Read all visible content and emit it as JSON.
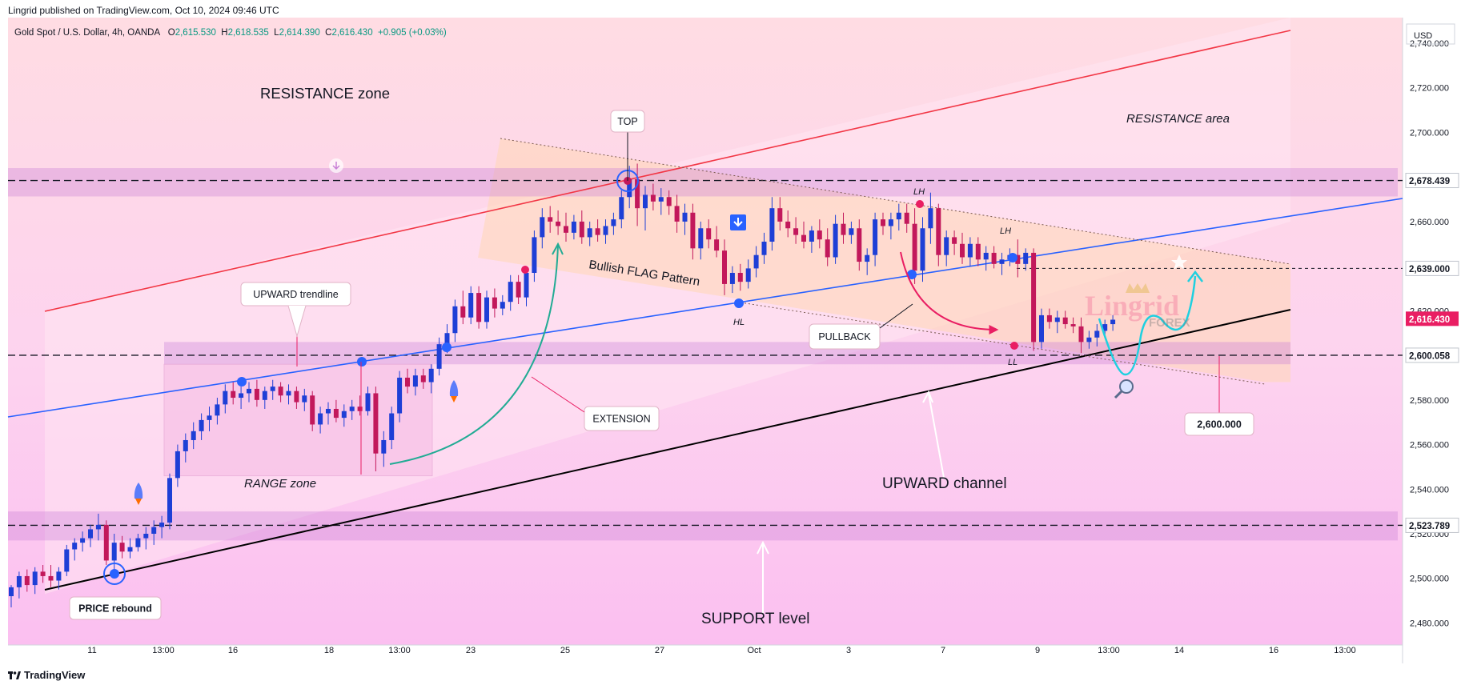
{
  "published": "Lingrid published on TradingView.com, Oct 10, 2024 09:46 UTC",
  "footer": {
    "brand": "TradingView"
  },
  "legend": {
    "symbol": "Gold Spot / U.S. Dollar, 4h, OANDA",
    "open_label": "O",
    "open": "2,615.530",
    "high_label": "H",
    "high": "2,618.535",
    "low_label": "L",
    "low": "2,614.390",
    "close_label": "C",
    "close": "2,616.430",
    "change": "+0.905 (+0.03%)"
  },
  "currency": "USD",
  "watermark": {
    "main": "Lingrid",
    "sub": "FOREX"
  },
  "chart_data": {
    "type": "candlestick",
    "ylim": [
      2470,
      2752
    ],
    "y_ticks": [
      2480,
      2500,
      2520,
      2540,
      2560,
      2580,
      2600,
      2620,
      2640,
      2660,
      2680,
      2700,
      2720,
      2740
    ],
    "y_tick_labels": [
      "2,480.000",
      "2,500.000",
      "2,520.000",
      "2,540.000",
      "2,560.000",
      "2,580.000",
      "2,600.000",
      "2,620.000",
      "2,640.000",
      "2,660.000",
      "2,680.000",
      "2,700.000",
      "2,720.000",
      "2,740.000"
    ],
    "x_ticks": [
      "11",
      "13:00",
      "16",
      "18",
      "13:00",
      "23",
      "25",
      "27",
      "Oct",
      "3",
      "7",
      "9",
      "13:00",
      "14",
      "16",
      "13:00"
    ],
    "price_labels": [
      {
        "value": 2678.439,
        "text": "2,678.439",
        "style": "level"
      },
      {
        "value": 2639.0,
        "text": "2,639.000",
        "style": "level"
      },
      {
        "value": 2616.43,
        "text": "2,616.430",
        "style": "current"
      },
      {
        "value": 2600.058,
        "text": "2,600.058",
        "style": "level"
      },
      {
        "value": 2523.789,
        "text": "2,523.789",
        "style": "level"
      }
    ],
    "levels": [
      2678.439,
      2600.058,
      2523.789,
      2639.0
    ],
    "target_label": "2,600.000",
    "annotations": {
      "resistance_zone": "RESISTANCE zone",
      "resistance_area": "RESISTANCE area",
      "top": "TOP",
      "upward_trendline": "UPWARD trendline",
      "bullish_flag": "Bullish FLAG Pattern",
      "range_zone": "RANGE zone",
      "extension": "EXTENSION",
      "pullback": "PULLBACK",
      "upward_channel": "UPWARD channel",
      "support_level": "SUPPORT level",
      "price_rebound": "PRICE rebound",
      "lh1": "LH",
      "lh2": "LH",
      "hl": "HL",
      "ll": "LL"
    },
    "colors": {
      "up": "#1e3fd6",
      "down": "#c2185b",
      "accent_red": "#f23645",
      "blue_line": "#2962ff",
      "teal": "#22ab94"
    },
    "candles": [
      {
        "o": 2492,
        "h": 2497,
        "l": 2487,
        "c": 2496
      },
      {
        "o": 2496,
        "h": 2503,
        "l": 2491,
        "c": 2501
      },
      {
        "o": 2501,
        "h": 2504,
        "l": 2494,
        "c": 2497
      },
      {
        "o": 2497,
        "h": 2505,
        "l": 2493,
        "c": 2503
      },
      {
        "o": 2503,
        "h": 2506,
        "l": 2498,
        "c": 2501
      },
      {
        "o": 2501,
        "h": 2506,
        "l": 2496,
        "c": 2499
      },
      {
        "o": 2499,
        "h": 2505,
        "l": 2495,
        "c": 2503
      },
      {
        "o": 2503,
        "h": 2515,
        "l": 2501,
        "c": 2513
      },
      {
        "o": 2513,
        "h": 2518,
        "l": 2508,
        "c": 2516
      },
      {
        "o": 2516,
        "h": 2521,
        "l": 2512,
        "c": 2518
      },
      {
        "o": 2518,
        "h": 2524,
        "l": 2514,
        "c": 2522
      },
      {
        "o": 2522,
        "h": 2529,
        "l": 2517,
        "c": 2524
      },
      {
        "o": 2524,
        "h": 2526,
        "l": 2506,
        "c": 2508
      },
      {
        "o": 2508,
        "h": 2520,
        "l": 2500,
        "c": 2516
      },
      {
        "o": 2516,
        "h": 2519,
        "l": 2509,
        "c": 2512
      },
      {
        "o": 2512,
        "h": 2518,
        "l": 2509,
        "c": 2514
      },
      {
        "o": 2514,
        "h": 2520,
        "l": 2512,
        "c": 2518
      },
      {
        "o": 2518,
        "h": 2523,
        "l": 2513,
        "c": 2520
      },
      {
        "o": 2520,
        "h": 2526,
        "l": 2515,
        "c": 2523
      },
      {
        "o": 2523,
        "h": 2528,
        "l": 2518,
        "c": 2525
      },
      {
        "o": 2525,
        "h": 2547,
        "l": 2522,
        "c": 2545
      },
      {
        "o": 2545,
        "h": 2560,
        "l": 2541,
        "c": 2557
      },
      {
        "o": 2557,
        "h": 2565,
        "l": 2552,
        "c": 2562
      },
      {
        "o": 2562,
        "h": 2570,
        "l": 2558,
        "c": 2566
      },
      {
        "o": 2566,
        "h": 2574,
        "l": 2562,
        "c": 2571
      },
      {
        "o": 2571,
        "h": 2577,
        "l": 2566,
        "c": 2573
      },
      {
        "o": 2573,
        "h": 2581,
        "l": 2569,
        "c": 2578
      },
      {
        "o": 2578,
        "h": 2587,
        "l": 2574,
        "c": 2584
      },
      {
        "o": 2584,
        "h": 2588,
        "l": 2578,
        "c": 2581
      },
      {
        "o": 2581,
        "h": 2586,
        "l": 2576,
        "c": 2583
      },
      {
        "o": 2583,
        "h": 2588,
        "l": 2579,
        "c": 2585
      },
      {
        "o": 2585,
        "h": 2589,
        "l": 2577,
        "c": 2580
      },
      {
        "o": 2580,
        "h": 2586,
        "l": 2576,
        "c": 2584
      },
      {
        "o": 2584,
        "h": 2589,
        "l": 2580,
        "c": 2586
      },
      {
        "o": 2586,
        "h": 2588,
        "l": 2579,
        "c": 2582
      },
      {
        "o": 2582,
        "h": 2587,
        "l": 2578,
        "c": 2584
      },
      {
        "o": 2584,
        "h": 2586,
        "l": 2576,
        "c": 2579
      },
      {
        "o": 2579,
        "h": 2585,
        "l": 2575,
        "c": 2582
      },
      {
        "o": 2582,
        "h": 2584,
        "l": 2566,
        "c": 2569
      },
      {
        "o": 2569,
        "h": 2577,
        "l": 2565,
        "c": 2574
      },
      {
        "o": 2574,
        "h": 2579,
        "l": 2569,
        "c": 2576
      },
      {
        "o": 2576,
        "h": 2580,
        "l": 2570,
        "c": 2572
      },
      {
        "o": 2572,
        "h": 2578,
        "l": 2568,
        "c": 2575
      },
      {
        "o": 2575,
        "h": 2580,
        "l": 2571,
        "c": 2577
      },
      {
        "o": 2577,
        "h": 2582,
        "l": 2573,
        "c": 2575
      },
      {
        "o": 2575,
        "h": 2586,
        "l": 2573,
        "c": 2583
      },
      {
        "o": 2583,
        "h": 2586,
        "l": 2548,
        "c": 2556
      },
      {
        "o": 2556,
        "h": 2566,
        "l": 2550,
        "c": 2562
      },
      {
        "o": 2562,
        "h": 2577,
        "l": 2558,
        "c": 2574
      },
      {
        "o": 2574,
        "h": 2593,
        "l": 2570,
        "c": 2590
      },
      {
        "o": 2590,
        "h": 2594,
        "l": 2583,
        "c": 2586
      },
      {
        "o": 2586,
        "h": 2594,
        "l": 2582,
        "c": 2591
      },
      {
        "o": 2591,
        "h": 2594,
        "l": 2585,
        "c": 2588
      },
      {
        "o": 2588,
        "h": 2596,
        "l": 2583,
        "c": 2594
      },
      {
        "o": 2594,
        "h": 2608,
        "l": 2591,
        "c": 2605
      },
      {
        "o": 2605,
        "h": 2614,
        "l": 2601,
        "c": 2610
      },
      {
        "o": 2610,
        "h": 2625,
        "l": 2606,
        "c": 2622
      },
      {
        "o": 2622,
        "h": 2629,
        "l": 2614,
        "c": 2617
      },
      {
        "o": 2617,
        "h": 2631,
        "l": 2614,
        "c": 2628
      },
      {
        "o": 2628,
        "h": 2631,
        "l": 2612,
        "c": 2615
      },
      {
        "o": 2615,
        "h": 2629,
        "l": 2612,
        "c": 2626
      },
      {
        "o": 2626,
        "h": 2630,
        "l": 2617,
        "c": 2621
      },
      {
        "o": 2621,
        "h": 2627,
        "l": 2618,
        "c": 2624
      },
      {
        "o": 2624,
        "h": 2636,
        "l": 2620,
        "c": 2633
      },
      {
        "o": 2633,
        "h": 2636,
        "l": 2623,
        "c": 2626
      },
      {
        "o": 2626,
        "h": 2640,
        "l": 2622,
        "c": 2637
      },
      {
        "o": 2637,
        "h": 2656,
        "l": 2633,
        "c": 2653
      },
      {
        "o": 2653,
        "h": 2666,
        "l": 2648,
        "c": 2662
      },
      {
        "o": 2662,
        "h": 2667,
        "l": 2655,
        "c": 2660
      },
      {
        "o": 2660,
        "h": 2665,
        "l": 2654,
        "c": 2658
      },
      {
        "o": 2658,
        "h": 2664,
        "l": 2651,
        "c": 2655
      },
      {
        "o": 2655,
        "h": 2663,
        "l": 2652,
        "c": 2660
      },
      {
        "o": 2660,
        "h": 2665,
        "l": 2650,
        "c": 2653
      },
      {
        "o": 2653,
        "h": 2660,
        "l": 2649,
        "c": 2657
      },
      {
        "o": 2657,
        "h": 2661,
        "l": 2651,
        "c": 2654
      },
      {
        "o": 2654,
        "h": 2661,
        "l": 2650,
        "c": 2658
      },
      {
        "o": 2658,
        "h": 2664,
        "l": 2654,
        "c": 2661
      },
      {
        "o": 2661,
        "h": 2674,
        "l": 2657,
        "c": 2671
      },
      {
        "o": 2671,
        "h": 2685,
        "l": 2666,
        "c": 2679
      },
      {
        "o": 2679,
        "h": 2686,
        "l": 2658,
        "c": 2666
      },
      {
        "o": 2666,
        "h": 2676,
        "l": 2656,
        "c": 2672
      },
      {
        "o": 2672,
        "h": 2677,
        "l": 2665,
        "c": 2669
      },
      {
        "o": 2669,
        "h": 2675,
        "l": 2663,
        "c": 2671
      },
      {
        "o": 2671,
        "h": 2674,
        "l": 2663,
        "c": 2667
      },
      {
        "o": 2667,
        "h": 2672,
        "l": 2655,
        "c": 2660
      },
      {
        "o": 2660,
        "h": 2668,
        "l": 2654,
        "c": 2664
      },
      {
        "o": 2664,
        "h": 2668,
        "l": 2643,
        "c": 2648
      },
      {
        "o": 2648,
        "h": 2660,
        "l": 2643,
        "c": 2657
      },
      {
        "o": 2657,
        "h": 2661,
        "l": 2648,
        "c": 2652
      },
      {
        "o": 2652,
        "h": 2658,
        "l": 2644,
        "c": 2647
      },
      {
        "o": 2647,
        "h": 2652,
        "l": 2627,
        "c": 2632
      },
      {
        "o": 2632,
        "h": 2640,
        "l": 2628,
        "c": 2637
      },
      {
        "o": 2637,
        "h": 2641,
        "l": 2629,
        "c": 2633
      },
      {
        "o": 2633,
        "h": 2643,
        "l": 2630,
        "c": 2639
      },
      {
        "o": 2639,
        "h": 2649,
        "l": 2635,
        "c": 2645
      },
      {
        "o": 2645,
        "h": 2655,
        "l": 2641,
        "c": 2651
      },
      {
        "o": 2651,
        "h": 2671,
        "l": 2647,
        "c": 2666
      },
      {
        "o": 2666,
        "h": 2671,
        "l": 2656,
        "c": 2660
      },
      {
        "o": 2660,
        "h": 2665,
        "l": 2653,
        "c": 2657
      },
      {
        "o": 2657,
        "h": 2662,
        "l": 2650,
        "c": 2654
      },
      {
        "o": 2654,
        "h": 2660,
        "l": 2648,
        "c": 2651
      },
      {
        "o": 2651,
        "h": 2658,
        "l": 2646,
        "c": 2656
      },
      {
        "o": 2656,
        "h": 2661,
        "l": 2648,
        "c": 2652
      },
      {
        "o": 2652,
        "h": 2657,
        "l": 2640,
        "c": 2644
      },
      {
        "o": 2644,
        "h": 2663,
        "l": 2641,
        "c": 2659
      },
      {
        "o": 2659,
        "h": 2664,
        "l": 2650,
        "c": 2654
      },
      {
        "o": 2654,
        "h": 2660,
        "l": 2650,
        "c": 2657
      },
      {
        "o": 2657,
        "h": 2661,
        "l": 2638,
        "c": 2642
      },
      {
        "o": 2642,
        "h": 2648,
        "l": 2636,
        "c": 2645
      },
      {
        "o": 2645,
        "h": 2664,
        "l": 2640,
        "c": 2661
      },
      {
        "o": 2661,
        "h": 2664,
        "l": 2654,
        "c": 2658
      },
      {
        "o": 2658,
        "h": 2664,
        "l": 2652,
        "c": 2661
      },
      {
        "o": 2661,
        "h": 2668,
        "l": 2656,
        "c": 2664
      },
      {
        "o": 2664,
        "h": 2668,
        "l": 2655,
        "c": 2659
      },
      {
        "o": 2659,
        "h": 2666,
        "l": 2632,
        "c": 2638
      },
      {
        "o": 2638,
        "h": 2662,
        "l": 2633,
        "c": 2657
      },
      {
        "o": 2657,
        "h": 2673,
        "l": 2650,
        "c": 2666
      },
      {
        "o": 2666,
        "h": 2668,
        "l": 2640,
        "c": 2645
      },
      {
        "o": 2645,
        "h": 2656,
        "l": 2640,
        "c": 2653
      },
      {
        "o": 2653,
        "h": 2656,
        "l": 2645,
        "c": 2650
      },
      {
        "o": 2650,
        "h": 2655,
        "l": 2641,
        "c": 2644
      },
      {
        "o": 2644,
        "h": 2653,
        "l": 2640,
        "c": 2650
      },
      {
        "o": 2650,
        "h": 2653,
        "l": 2640,
        "c": 2643
      },
      {
        "o": 2643,
        "h": 2649,
        "l": 2638,
        "c": 2646
      },
      {
        "o": 2646,
        "h": 2649,
        "l": 2639,
        "c": 2641
      },
      {
        "o": 2641,
        "h": 2646,
        "l": 2636,
        "c": 2643
      },
      {
        "o": 2643,
        "h": 2648,
        "l": 2640,
        "c": 2645
      },
      {
        "o": 2645,
        "h": 2652,
        "l": 2635,
        "c": 2641
      },
      {
        "o": 2641,
        "h": 2648,
        "l": 2638,
        "c": 2646
      },
      {
        "o": 2646,
        "h": 2648,
        "l": 2602,
        "c": 2606
      },
      {
        "o": 2606,
        "h": 2621,
        "l": 2603,
        "c": 2618
      },
      {
        "o": 2618,
        "h": 2621,
        "l": 2612,
        "c": 2615
      },
      {
        "o": 2615,
        "h": 2620,
        "l": 2610,
        "c": 2617
      },
      {
        "o": 2617,
        "h": 2620,
        "l": 2612,
        "c": 2614
      },
      {
        "o": 2614,
        "h": 2617,
        "l": 2610,
        "c": 2613
      },
      {
        "o": 2613,
        "h": 2617,
        "l": 2601,
        "c": 2606
      },
      {
        "o": 2606,
        "h": 2611,
        "l": 2603,
        "c": 2608
      },
      {
        "o": 2608,
        "h": 2614,
        "l": 2604,
        "c": 2611
      },
      {
        "o": 2611,
        "h": 2616,
        "l": 2608,
        "c": 2614
      },
      {
        "o": 2614,
        "h": 2618,
        "l": 2611,
        "c": 2616
      }
    ]
  }
}
